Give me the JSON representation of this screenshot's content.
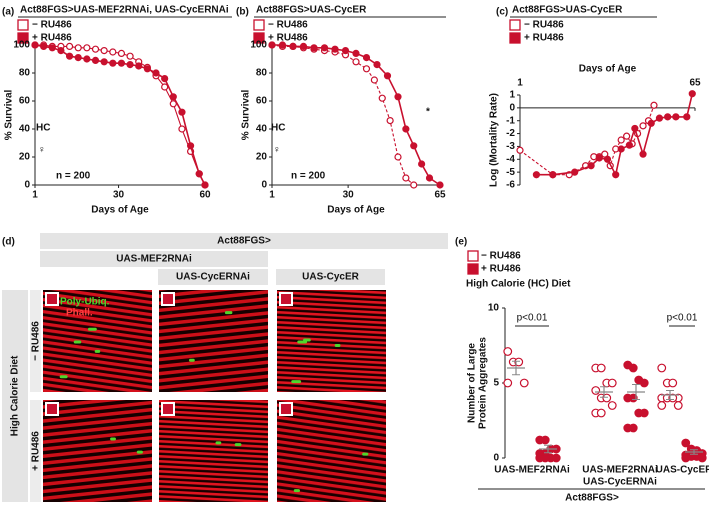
{
  "panel_labels": [
    "(a)",
    "(b)",
    "(c)",
    "(d)",
    "(e)"
  ],
  "chart_data": [
    {
      "type": "line",
      "title": "Act88FGS>UAS-MEF2RNAi, UAS-CycERNAi",
      "xlabel": "Days of Age",
      "ylabel": "% Survival",
      "xlim": [
        1,
        60
      ],
      "xticks": [
        1,
        30,
        60
      ],
      "ylim": [
        0,
        100
      ],
      "yticks": [
        0,
        20,
        40,
        60,
        80,
        100
      ],
      "annotations": [
        "HC",
        "♀",
        "n = 200"
      ],
      "series": [
        {
          "name": "− RU486",
          "color": "#c8102e",
          "marker": "open",
          "line": "solid",
          "x": [
            1,
            4,
            7,
            10,
            13,
            16,
            19,
            22,
            25,
            28,
            31,
            34,
            37,
            40,
            43,
            46,
            49,
            52,
            55,
            58,
            60
          ],
          "values": [
            100,
            100,
            99,
            99,
            99,
            98,
            98,
            97,
            96,
            95,
            94,
            92,
            88,
            84,
            78,
            70,
            58,
            40,
            24,
            8,
            0
          ]
        },
        {
          "name": "+ RU486",
          "color": "#c8102e",
          "marker": "filled",
          "line": "solid",
          "x": [
            1,
            4,
            7,
            10,
            13,
            16,
            19,
            22,
            25,
            28,
            31,
            34,
            37,
            40,
            43,
            46,
            49,
            52,
            55,
            58,
            60
          ],
          "values": [
            100,
            99,
            98,
            96,
            92,
            91,
            90,
            89,
            88,
            87,
            87,
            86,
            85,
            83,
            80,
            76,
            63,
            52,
            28,
            8,
            0
          ]
        }
      ]
    },
    {
      "type": "line",
      "title": "Act88FGS>UAS-CycER",
      "xlabel": "Days of Age",
      "ylabel": "% Survival",
      "xlim": [
        1,
        65
      ],
      "xticks": [
        1,
        30,
        65
      ],
      "ylim": [
        0,
        100
      ],
      "yticks": [
        0,
        20,
        40,
        60,
        80,
        100
      ],
      "annotations": [
        "HC",
        "♀",
        "n = 200",
        "*"
      ],
      "series": [
        {
          "name": "− RU486",
          "color": "#c8102e",
          "marker": "open",
          "line": "dashed",
          "x": [
            1,
            5,
            9,
            13,
            17,
            21,
            25,
            29,
            33,
            37,
            40,
            43,
            46,
            49,
            52,
            55
          ],
          "values": [
            100,
            99,
            99,
            98,
            97,
            96,
            95,
            93,
            88,
            83,
            75,
            62,
            46,
            20,
            5,
            0
          ]
        },
        {
          "name": "+ RU486",
          "color": "#c8102e",
          "marker": "filled",
          "line": "solid",
          "x": [
            1,
            5,
            9,
            13,
            17,
            21,
            25,
            29,
            33,
            37,
            41,
            45,
            49,
            52,
            55,
            58,
            61,
            65
          ],
          "values": [
            100,
            100,
            99,
            99,
            98,
            98,
            97,
            96,
            94,
            91,
            86,
            78,
            63,
            40,
            28,
            15,
            5,
            0
          ]
        }
      ]
    },
    {
      "type": "line",
      "title": "Act88FGS>UAS-CycER",
      "xlabel": "Days of Age",
      "ylabel": "Log (Mortality Rate)",
      "xaxis_location": "top",
      "xlim": [
        1,
        65
      ],
      "xticks": [
        1,
        65
      ],
      "ylim": [
        -6,
        1
      ],
      "yticks": [
        -6,
        -5,
        -4,
        -3,
        -2,
        -1,
        0,
        1
      ],
      "annotations": [],
      "series": [
        {
          "name": "− RU486",
          "color": "#c8102e",
          "marker": "open",
          "line": "dashed",
          "x": [
            1,
            13,
            19,
            25,
            28,
            30,
            32,
            34,
            36,
            38,
            40,
            42,
            44,
            46,
            48,
            50
          ],
          "values": [
            -3.3,
            -5.2,
            -5.2,
            -4.5,
            -3.8,
            -3.8,
            -3.6,
            -4.5,
            -3.2,
            -2.5,
            -2.2,
            -2.8,
            -2.0,
            -1.4,
            -1.0,
            0.2
          ]
        },
        {
          "name": "+ RU486",
          "color": "#c8102e",
          "marker": "filled",
          "line": "solid",
          "x": [
            7,
            13,
            21,
            27,
            30,
            33,
            36,
            38,
            41,
            43,
            46,
            49,
            52,
            55,
            58,
            62,
            64
          ],
          "values": [
            -5.2,
            -5.2,
            -5.0,
            -4.5,
            -3.9,
            -4.0,
            -5.2,
            -3.2,
            -2.9,
            -1.6,
            -3.6,
            -1.2,
            -0.8,
            -0.7,
            -0.7,
            -0.7,
            1.1
          ]
        }
      ]
    },
    {
      "type": "dot",
      "subtitle": "High Calorie (HC) Diet",
      "ylabel": [
        "Number of Large",
        "Protein Aggregates"
      ],
      "xlabel": "Act88FGS>",
      "ylim": [
        0,
        10
      ],
      "yticks": [
        0,
        5,
        10
      ],
      "annotations": [
        "p<0.01",
        "p<0.01"
      ],
      "categories": [
        [
          "UAS-MEF2RNAi"
        ],
        [
          "UAS-MEF2RNAi",
          "UAS-CycERNAi"
        ],
        [
          "UAS-CycER"
        ]
      ],
      "series": [
        {
          "name": "− RU486",
          "color": "#c8102e",
          "marker": "open",
          "values": [
            [
              7.1,
              6.4,
              6.4,
              5.0,
              5.0
            ],
            [
              6.0,
              6.0,
              5.0,
              5.0,
              4.5,
              4.0,
              4.0,
              3.5,
              3.0,
              3.0
            ],
            [
              6.0,
              5.0,
              5.0,
              4.0,
              4.0,
              4.0,
              4.0,
              3.5,
              3.5
            ]
          ],
          "means": [
            6.0,
            4.4,
            4.2
          ],
          "errors": [
            0.45,
            0.35,
            0.3
          ]
        },
        {
          "name": "+ RU486",
          "color": "#c8102e",
          "marker": "filled",
          "values": [
            [
              1.2,
              1.2,
              0.6,
              0.6,
              0.3,
              0.3,
              0,
              0,
              0,
              0
            ],
            [
              6.2,
              6.0,
              5.2,
              5.0,
              4.0,
              4.0,
              3.0,
              3.0,
              2.0,
              2.0
            ],
            [
              1.0,
              0.6,
              0.5,
              0.3,
              0.2,
              0.1,
              0.1,
              0,
              0
            ]
          ],
          "means": [
            0.6,
            4.4,
            0.4
          ],
          "errors": [
            0.25,
            0.5,
            0.15
          ]
        }
      ]
    }
  ],
  "micrograph": {
    "header": "Act88FGS>",
    "group": "UAS-MEF2RNAi",
    "columns": [
      "UAS-CycERNAi",
      "UAS-CycER"
    ],
    "diet": "High Calorie Diet",
    "rows": [
      "− RU486",
      "+ RU486"
    ],
    "stains": [
      "Poly-Ubiq.",
      "Phall."
    ]
  }
}
